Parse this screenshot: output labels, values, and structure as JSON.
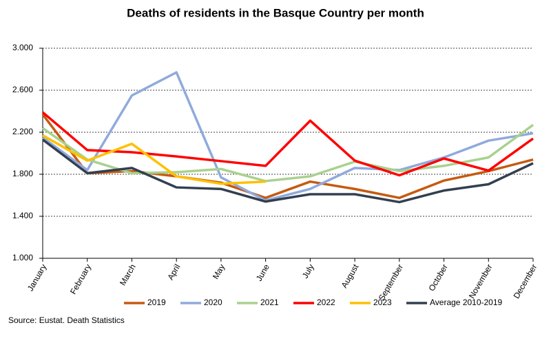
{
  "chart_data": {
    "type": "line",
    "title": "Deaths of residents in the Basque Country per month",
    "source": "Source: Eustat. Death Statistics",
    "categories": [
      "January",
      "February",
      "March",
      "April",
      "May",
      "June",
      "July",
      "August",
      "September",
      "October",
      "November",
      "December"
    ],
    "ylim": [
      1000,
      3000
    ],
    "yticks": [
      {
        "value": 1000,
        "label": "1.000"
      },
      {
        "value": 1400,
        "label": "1.400"
      },
      {
        "value": 1800,
        "label": "1.800"
      },
      {
        "value": 2200,
        "label": "2.200"
      },
      {
        "value": 2600,
        "label": "2.600"
      },
      {
        "value": 3000,
        "label": "3.000"
      }
    ],
    "grid": true,
    "legend": "bottom",
    "series": [
      {
        "name": "2019",
        "color": "#c55a11",
        "values": [
          2370,
          1810,
          1830,
          1780,
          1720,
          1575,
          1730,
          1660,
          1575,
          1740,
          1830,
          1940
        ]
      },
      {
        "name": "2020",
        "color": "#8faadc",
        "values": [
          2150,
          1840,
          2550,
          2770,
          1770,
          1550,
          1660,
          1860,
          1840,
          1960,
          2120,
          2190
        ]
      },
      {
        "name": "2021",
        "color": "#a9d18e",
        "values": [
          2240,
          1940,
          1810,
          1820,
          1850,
          1735,
          1780,
          1920,
          1830,
          1880,
          1960,
          2270
        ]
      },
      {
        "name": "2022",
        "color": "#ff0000",
        "values": [
          2390,
          2030,
          2010,
          1970,
          1925,
          1880,
          2310,
          1930,
          1790,
          1950,
          1835,
          2140
        ]
      },
      {
        "name": "2023",
        "color": "#ffc000",
        "values": [
          2170,
          1930,
          2090,
          1780,
          1710,
          1730,
          null,
          null,
          null,
          null,
          null,
          null
        ]
      },
      {
        "name": "Average 2010-2019",
        "color": "#333f50",
        "values": [
          2130,
          1810,
          1860,
          1675,
          1660,
          1540,
          1610,
          1610,
          1535,
          1645,
          1705,
          1905
        ]
      }
    ]
  }
}
